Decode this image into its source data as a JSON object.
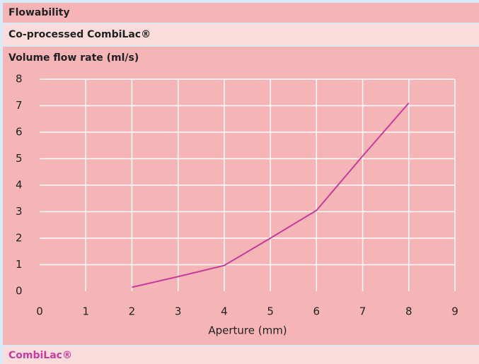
{
  "chart_data": {
    "type": "line",
    "title": "Flowability",
    "subtitle": "Co-processed CombiLac®",
    "ylabel": "Volume flow rate (ml/s)",
    "xlabel": "Aperture (mm)",
    "x": [
      2,
      3,
      4,
      5,
      6,
      7,
      8
    ],
    "series": [
      {
        "name": "CombiLac®",
        "color": "#c53d9c",
        "values": [
          0.15,
          0.55,
          0.97,
          2.0,
          3.05,
          5.1,
          7.1
        ]
      }
    ],
    "xlim": [
      0,
      9
    ],
    "xticks": [
      0,
      1,
      2,
      3,
      4,
      5,
      6,
      7,
      8,
      9
    ],
    "ylim": [
      0,
      8
    ],
    "yticks": [
      0,
      1,
      2,
      3,
      4,
      5,
      6,
      7,
      8
    ],
    "grid": true
  }
}
